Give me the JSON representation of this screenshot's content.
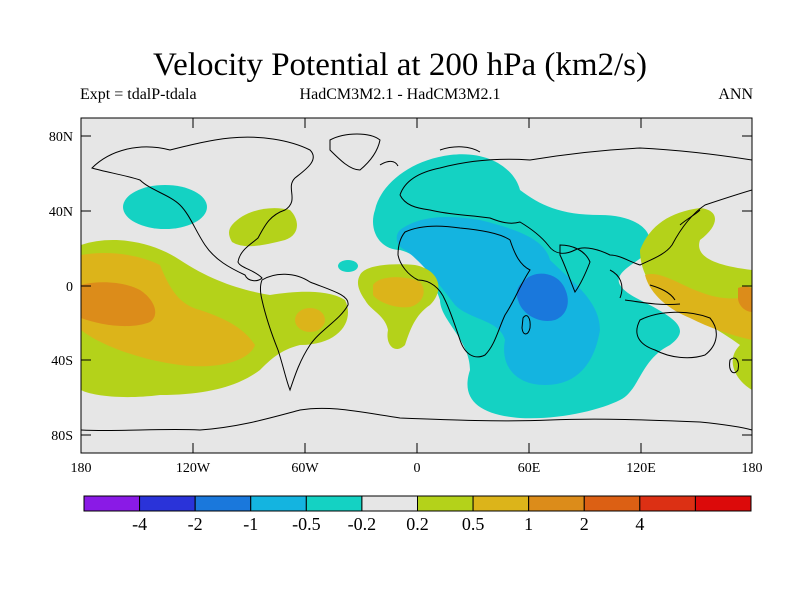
{
  "title": "Velocity Potential at 200 hPa (km2/s)",
  "subtitle_left": "Expt = tdalP-tdala",
  "subtitle_center": "HadCM3M2.1 - HadCM3M2.1",
  "subtitle_right": "ANN",
  "lat_labels": [
    "80N",
    "40N",
    "0",
    "40S",
    "80S"
  ],
  "lon_labels": [
    "180",
    "120W",
    "60W",
    "0",
    "60E",
    "120E",
    "180"
  ],
  "colorbar": {
    "colors": [
      "#8a1ae6",
      "#2a33d9",
      "#1a78dc",
      "#14b4e0",
      "#14d2c3",
      "#e6e6e6",
      "#b4d21a",
      "#dcb41a",
      "#dc8c1a",
      "#dc6014",
      "#dc3014",
      "#dc0a0a"
    ],
    "labels": [
      "-4",
      "-2",
      "-1",
      "-0.5",
      "-0.2",
      "0.2",
      "0.5",
      "1",
      "2",
      "4"
    ]
  },
  "map_colors": {
    "ocean_neutral": "#e6e6e6",
    "neg_weak": "#14d2c3",
    "neg_mod": "#14b4e0",
    "neg_strong": "#1a78dc",
    "pos_weak": "#b4d21a",
    "pos_mod": "#dcb41a",
    "pos_strong": "#dc8c1a",
    "coast": "#000000"
  }
}
